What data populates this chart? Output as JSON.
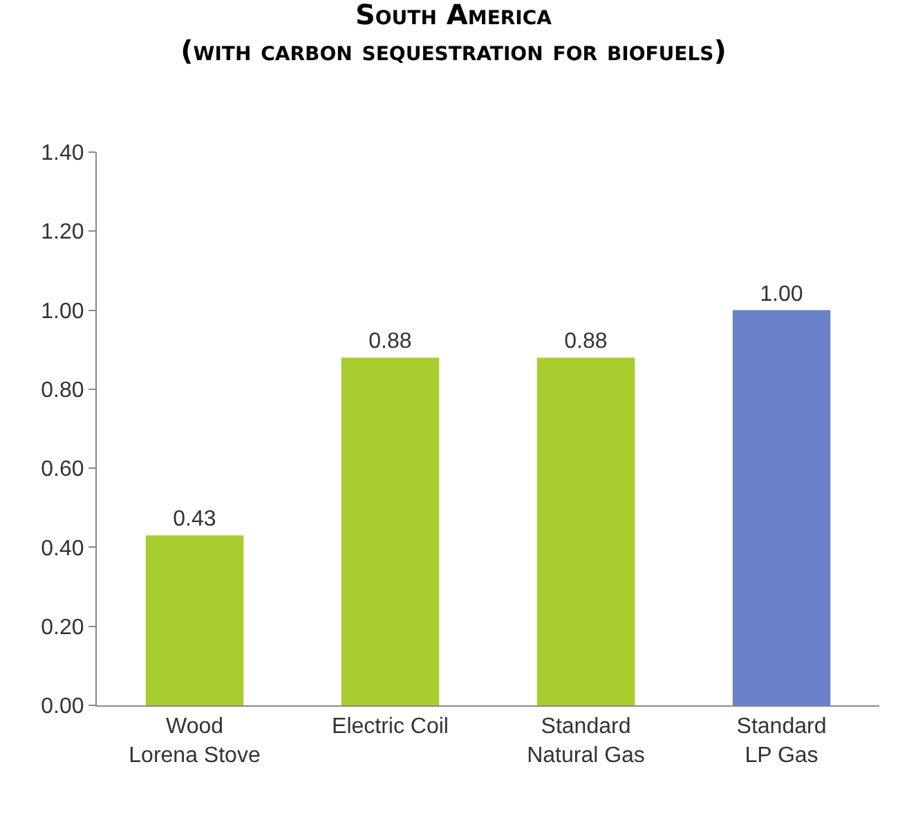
{
  "chart_data": {
    "type": "bar",
    "title": "South America",
    "subtitle": "(with carbon sequestration for biofuels)",
    "categories": [
      "Wood\nLorena Stove",
      "Electric Coil",
      "Standard\nNatural Gas",
      "Standard\nLP Gas"
    ],
    "values": [
      0.43,
      0.88,
      0.88,
      1.0
    ],
    "colors": [
      "#a9cd2e",
      "#a9cd2e",
      "#a9cd2e",
      "#6a80c9"
    ],
    "value_labels": [
      "0.43",
      "0.88",
      "0.88",
      "1.00"
    ],
    "ylim": [
      0,
      1.4
    ],
    "yticks": [
      {
        "value": 0,
        "label": "0.00"
      },
      {
        "value": 0.2,
        "label": "0.20"
      },
      {
        "value": 0.4,
        "label": "0.40"
      },
      {
        "value": 0.6,
        "label": "0.60"
      },
      {
        "value": 0.8,
        "label": "0.80"
      },
      {
        "value": 1.0,
        "label": "1.00"
      },
      {
        "value": 1.2,
        "label": "1.20"
      },
      {
        "value": 1.4,
        "label": "1.40"
      }
    ],
    "data_labels": true
  }
}
